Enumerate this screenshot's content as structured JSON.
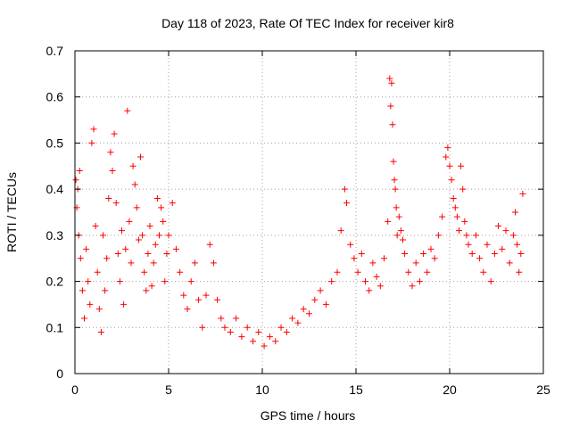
{
  "chart_data": {
    "type": "scatter",
    "title": "Day 118 of 2023, Rate Of TEC Index for receiver kir8",
    "xlabel": "GPS time / hours",
    "ylabel": "ROTI / TECUs",
    "xlim": [
      0,
      25
    ],
    "ylim": [
      0,
      0.7
    ],
    "xticks": [
      "0",
      "5",
      "10",
      "15",
      "20",
      "25"
    ],
    "yticks": [
      "0",
      "0.1",
      "0.2",
      "0.3",
      "0.4",
      "0.5",
      "0.6",
      "0.7"
    ],
    "grid": true,
    "marker": "+",
    "color": "#ff0000",
    "series": [
      {
        "points": [
          [
            0.05,
            0.42
          ],
          [
            0.1,
            0.36
          ],
          [
            0.15,
            0.4
          ],
          [
            0.2,
            0.3
          ],
          [
            0.25,
            0.44
          ],
          [
            0.3,
            0.25
          ],
          [
            0.4,
            0.18
          ],
          [
            0.5,
            0.12
          ],
          [
            0.6,
            0.27
          ],
          [
            0.7,
            0.2
          ],
          [
            0.8,
            0.15
          ],
          [
            0.9,
            0.5
          ],
          [
            1.0,
            0.53
          ],
          [
            1.1,
            0.32
          ],
          [
            1.2,
            0.22
          ],
          [
            1.3,
            0.14
          ],
          [
            1.4,
            0.09
          ],
          [
            1.5,
            0.3
          ],
          [
            1.6,
            0.18
          ],
          [
            1.7,
            0.25
          ],
          [
            1.8,
            0.38
          ],
          [
            1.9,
            0.48
          ],
          [
            2.0,
            0.44
          ],
          [
            2.1,
            0.52
          ],
          [
            2.2,
            0.37
          ],
          [
            2.3,
            0.26
          ],
          [
            2.4,
            0.2
          ],
          [
            2.5,
            0.31
          ],
          [
            2.6,
            0.15
          ],
          [
            2.7,
            0.27
          ],
          [
            2.8,
            0.57
          ],
          [
            2.9,
            0.33
          ],
          [
            3.0,
            0.24
          ],
          [
            3.1,
            0.45
          ],
          [
            3.2,
            0.41
          ],
          [
            3.3,
            0.36
          ],
          [
            3.4,
            0.29
          ],
          [
            3.5,
            0.47
          ],
          [
            3.6,
            0.3
          ],
          [
            3.7,
            0.22
          ],
          [
            3.8,
            0.18
          ],
          [
            3.9,
            0.26
          ],
          [
            4.0,
            0.32
          ],
          [
            4.1,
            0.19
          ],
          [
            4.2,
            0.24
          ],
          [
            4.3,
            0.28
          ],
          [
            4.4,
            0.38
          ],
          [
            4.5,
            0.3
          ],
          [
            4.6,
            0.36
          ],
          [
            4.7,
            0.33
          ],
          [
            4.8,
            0.2
          ],
          [
            4.9,
            0.26
          ],
          [
            5.0,
            0.3
          ],
          [
            5.2,
            0.37
          ],
          [
            5.4,
            0.27
          ],
          [
            5.6,
            0.22
          ],
          [
            5.8,
            0.17
          ],
          [
            6.0,
            0.14
          ],
          [
            6.2,
            0.2
          ],
          [
            6.4,
            0.24
          ],
          [
            6.6,
            0.16
          ],
          [
            6.8,
            0.1
          ],
          [
            7.0,
            0.17
          ],
          [
            7.2,
            0.28
          ],
          [
            7.4,
            0.24
          ],
          [
            7.6,
            0.16
          ],
          [
            7.8,
            0.12
          ],
          [
            8.0,
            0.1
          ],
          [
            8.3,
            0.09
          ],
          [
            8.6,
            0.12
          ],
          [
            8.9,
            0.08
          ],
          [
            9.2,
            0.1
          ],
          [
            9.5,
            0.07
          ],
          [
            9.8,
            0.09
          ],
          [
            10.1,
            0.06
          ],
          [
            10.4,
            0.08
          ],
          [
            10.7,
            0.07
          ],
          [
            11.0,
            0.1
          ],
          [
            11.3,
            0.09
          ],
          [
            11.6,
            0.12
          ],
          [
            11.9,
            0.11
          ],
          [
            12.2,
            0.14
          ],
          [
            12.5,
            0.13
          ],
          [
            12.8,
            0.16
          ],
          [
            13.1,
            0.18
          ],
          [
            13.4,
            0.15
          ],
          [
            13.7,
            0.2
          ],
          [
            14.0,
            0.22
          ],
          [
            14.2,
            0.31
          ],
          [
            14.4,
            0.4
          ],
          [
            14.5,
            0.37
          ],
          [
            14.7,
            0.28
          ],
          [
            14.9,
            0.25
          ],
          [
            15.1,
            0.22
          ],
          [
            15.3,
            0.26
          ],
          [
            15.5,
            0.2
          ],
          [
            15.7,
            0.18
          ],
          [
            15.9,
            0.24
          ],
          [
            16.1,
            0.21
          ],
          [
            16.3,
            0.19
          ],
          [
            16.5,
            0.25
          ],
          [
            16.7,
            0.33
          ],
          [
            16.8,
            0.64
          ],
          [
            16.85,
            0.58
          ],
          [
            16.9,
            0.63
          ],
          [
            16.95,
            0.54
          ],
          [
            17.0,
            0.46
          ],
          [
            17.05,
            0.42
          ],
          [
            17.1,
            0.4
          ],
          [
            17.15,
            0.36
          ],
          [
            17.2,
            0.3
          ],
          [
            17.3,
            0.34
          ],
          [
            17.4,
            0.31
          ],
          [
            17.5,
            0.29
          ],
          [
            17.6,
            0.26
          ],
          [
            17.8,
            0.22
          ],
          [
            18.0,
            0.19
          ],
          [
            18.2,
            0.24
          ],
          [
            18.4,
            0.2
          ],
          [
            18.6,
            0.26
          ],
          [
            18.8,
            0.22
          ],
          [
            19.0,
            0.27
          ],
          [
            19.2,
            0.25
          ],
          [
            19.4,
            0.3
          ],
          [
            19.6,
            0.34
          ],
          [
            19.8,
            0.47
          ],
          [
            19.9,
            0.49
          ],
          [
            20.0,
            0.45
          ],
          [
            20.1,
            0.42
          ],
          [
            20.2,
            0.38
          ],
          [
            20.3,
            0.36
          ],
          [
            20.4,
            0.34
          ],
          [
            20.5,
            0.31
          ],
          [
            20.6,
            0.45
          ],
          [
            20.7,
            0.4
          ],
          [
            20.8,
            0.33
          ],
          [
            20.9,
            0.3
          ],
          [
            21.0,
            0.28
          ],
          [
            21.2,
            0.26
          ],
          [
            21.4,
            0.3
          ],
          [
            21.6,
            0.25
          ],
          [
            21.8,
            0.22
          ],
          [
            22.0,
            0.28
          ],
          [
            22.2,
            0.2
          ],
          [
            22.4,
            0.26
          ],
          [
            22.6,
            0.32
          ],
          [
            22.8,
            0.27
          ],
          [
            23.0,
            0.31
          ],
          [
            23.2,
            0.24
          ],
          [
            23.4,
            0.3
          ],
          [
            23.5,
            0.35
          ],
          [
            23.6,
            0.28
          ],
          [
            23.7,
            0.22
          ],
          [
            23.8,
            0.26
          ],
          [
            23.9,
            0.39
          ]
        ]
      }
    ]
  }
}
